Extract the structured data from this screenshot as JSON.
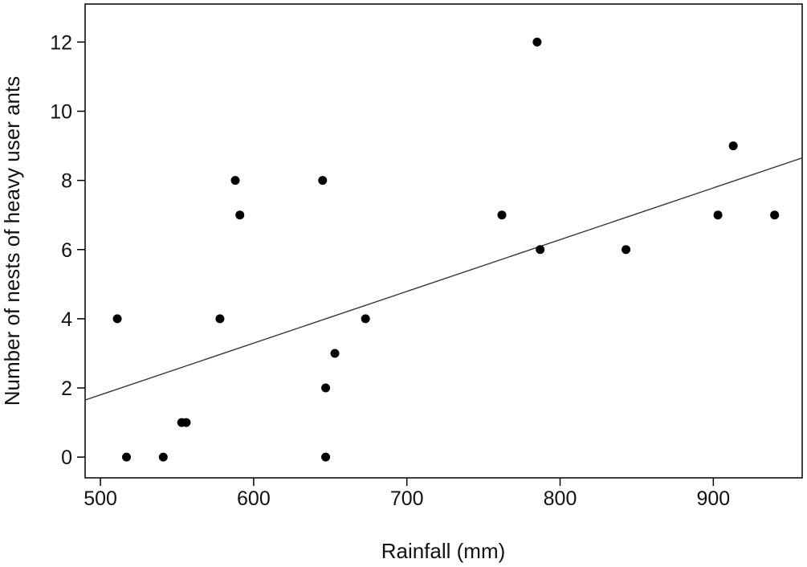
{
  "chart_data": {
    "type": "scatter",
    "title": "",
    "xlabel": "Rainfall (mm)",
    "ylabel": "Number of nests of heavy user ants",
    "xlim": [
      490,
      958
    ],
    "ylim": [
      -0.6,
      13.1
    ],
    "x_ticks": [
      500,
      600,
      700,
      800,
      900
    ],
    "y_ticks": [
      0,
      2,
      4,
      6,
      8,
      10,
      12
    ],
    "grid": false,
    "legend": "none",
    "marker_color": "#000000",
    "line_color": "#333333",
    "points": [
      {
        "x": 511,
        "y": 4
      },
      {
        "x": 517,
        "y": 0
      },
      {
        "x": 541,
        "y": 0
      },
      {
        "x": 553,
        "y": 1
      },
      {
        "x": 556,
        "y": 1
      },
      {
        "x": 578,
        "y": 4
      },
      {
        "x": 588,
        "y": 8
      },
      {
        "x": 591,
        "y": 7
      },
      {
        "x": 645,
        "y": 8
      },
      {
        "x": 647,
        "y": 2
      },
      {
        "x": 647,
        "y": 0
      },
      {
        "x": 653,
        "y": 3
      },
      {
        "x": 673,
        "y": 4
      },
      {
        "x": 762,
        "y": 7
      },
      {
        "x": 785,
        "y": 12
      },
      {
        "x": 787,
        "y": 6
      },
      {
        "x": 843,
        "y": 6
      },
      {
        "x": 903,
        "y": 7
      },
      {
        "x": 913,
        "y": 9
      },
      {
        "x": 940,
        "y": 7
      }
    ],
    "trendline": {
      "x": [
        490,
        958
      ],
      "y": [
        1.65,
        8.65
      ]
    }
  }
}
